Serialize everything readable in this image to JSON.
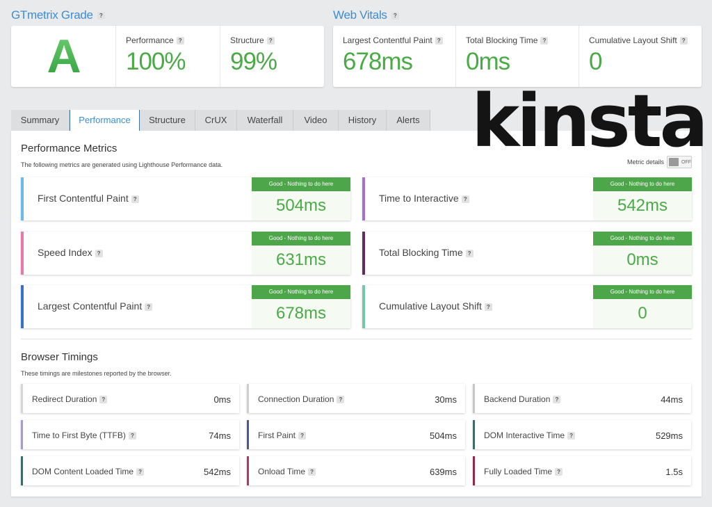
{
  "grade": {
    "title": "GTmetrix Grade",
    "letter": "A",
    "metrics": [
      {
        "label": "Performance",
        "value": "100%"
      },
      {
        "label": "Structure",
        "value": "99%"
      }
    ]
  },
  "web_vitals": {
    "title": "Web Vitals",
    "metrics": [
      {
        "label": "Largest Contentful Paint",
        "value": "678ms"
      },
      {
        "label": "Total Blocking Time",
        "value": "0ms"
      },
      {
        "label": "Cumulative Layout Shift",
        "value": "0"
      }
    ]
  },
  "help_icon": "?",
  "logo": "kinsta",
  "tabs": [
    "Summary",
    "Performance",
    "Structure",
    "CrUX",
    "Waterfall",
    "Video",
    "History",
    "Alerts"
  ],
  "active_tab": "Performance",
  "performance_metrics": {
    "title": "Performance Metrics",
    "subtitle": "The following metrics are generated using Lighthouse Performance data.",
    "metric_details_label": "Metric details",
    "toggle_state": "OFF",
    "items": [
      {
        "name": "First Contentful Paint",
        "status": "Good - Nothing to do here",
        "value": "504ms",
        "color": "#6bbbe8"
      },
      {
        "name": "Time to Interactive",
        "status": "Good - Nothing to do here",
        "value": "542ms",
        "color": "#a66fd6"
      },
      {
        "name": "Speed Index",
        "status": "Good - Nothing to do here",
        "value": "631ms",
        "color": "#e57aad"
      },
      {
        "name": "Total Blocking Time",
        "status": "Good - Nothing to do here",
        "value": "0ms",
        "color": "#5e2f5e"
      },
      {
        "name": "Largest Contentful Paint",
        "status": "Good - Nothing to do here",
        "value": "678ms",
        "color": "#3d6ec9"
      },
      {
        "name": "Cumulative Layout Shift",
        "status": "Good - Nothing to do here",
        "value": "0",
        "color": "#74c8a8"
      }
    ]
  },
  "browser_timings": {
    "title": "Browser Timings",
    "subtitle": "These timings are milestones reported by the browser.",
    "items": [
      {
        "name": "Redirect Duration",
        "value": "0ms",
        "color": "#d6d6d6"
      },
      {
        "name": "Connection Duration",
        "value": "30ms",
        "color": "#cfcfcf"
      },
      {
        "name": "Backend Duration",
        "value": "44ms",
        "color": "#c6c6c6"
      },
      {
        "name": "Time to First Byte (TTFB)",
        "value": "74ms",
        "color": "#a89bc4"
      },
      {
        "name": "First Paint",
        "value": "504ms",
        "color": "#4b5a8e"
      },
      {
        "name": "DOM Interactive Time",
        "value": "529ms",
        "color": "#3f6a6a"
      },
      {
        "name": "DOM Content Loaded Time",
        "value": "542ms",
        "color": "#3f6a6a"
      },
      {
        "name": "Onload Time",
        "value": "639ms",
        "color": "#b0366e"
      },
      {
        "name": "Fully Loaded Time",
        "value": "1.5s",
        "color": "#8e2a4e"
      }
    ]
  }
}
